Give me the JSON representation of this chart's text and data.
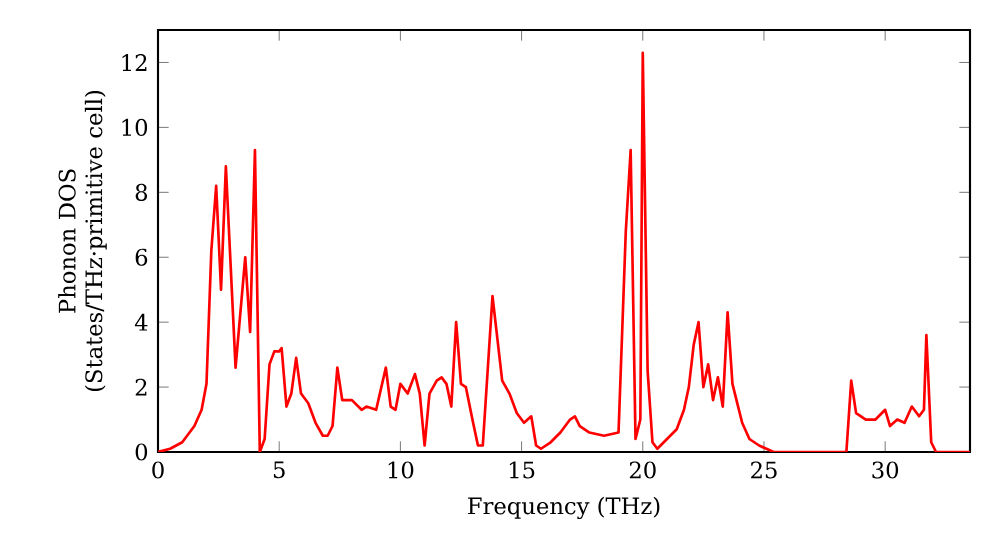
{
  "chart_data": {
    "type": "line",
    "xlabel": "Frequency (THz)",
    "ylabel": "Phonon DOS (States/THz·primitive cell)",
    "xlim": [
      0,
      33.5
    ],
    "ylim": [
      0,
      13
    ],
    "xticks": [
      0,
      5,
      10,
      15,
      20,
      25,
      30
    ],
    "yticks": [
      0,
      2,
      4,
      6,
      8,
      10,
      12
    ],
    "marker": "none",
    "line_style": "solid",
    "series": [
      {
        "color": "#ff0000",
        "x": [
          0,
          0.5,
          1,
          1.5,
          1.8,
          2.0,
          2.2,
          2.4,
          2.6,
          2.8,
          3.2,
          3.6,
          3.8,
          4.0,
          4.2,
          4.4,
          4.6,
          4.8,
          5.0,
          5.1,
          5.3,
          5.5,
          5.7,
          5.9,
          6.2,
          6.5,
          6.8,
          7.0,
          7.2,
          7.4,
          7.6,
          8.0,
          8.4,
          8.6,
          9.0,
          9.4,
          9.6,
          9.8,
          10.0,
          10.3,
          10.6,
          10.8,
          11.0,
          11.2,
          11.5,
          11.7,
          11.9,
          12.1,
          12.3,
          12.5,
          12.7,
          13.0,
          13.2,
          13.4,
          13.8,
          14.2,
          14.5,
          14.8,
          15.1,
          15.4,
          15.6,
          15.8,
          16.2,
          16.6,
          17.0,
          17.2,
          17.4,
          17.8,
          18.4,
          19.0,
          19.3,
          19.5,
          19.7,
          19.9,
          20.0,
          20.2,
          20.4,
          20.6,
          21.0,
          21.4,
          21.7,
          21.9,
          22.1,
          22.3,
          22.5,
          22.7,
          22.9,
          23.1,
          23.3,
          23.5,
          23.7,
          23.9,
          24.1,
          24.4,
          24.8,
          25.1,
          25.4,
          28.4,
          28.6,
          28.8,
          29.2,
          29.6,
          30.0,
          30.2,
          30.5,
          30.8,
          31.1,
          31.4,
          31.6,
          31.7,
          31.9,
          32.1,
          33.5
        ],
        "values": [
          0,
          0.1,
          0.3,
          0.8,
          1.3,
          2.1,
          6.2,
          8.2,
          5.0,
          8.8,
          2.6,
          6.0,
          3.7,
          9.3,
          0.0,
          0.4,
          2.7,
          3.1,
          3.1,
          3.2,
          1.4,
          1.8,
          2.9,
          1.8,
          1.5,
          0.9,
          0.5,
          0.5,
          0.8,
          2.6,
          1.6,
          1.6,
          1.3,
          1.4,
          1.3,
          2.6,
          1.4,
          1.3,
          2.1,
          1.8,
          2.4,
          1.8,
          0.2,
          1.8,
          2.2,
          2.3,
          2.1,
          1.4,
          4.0,
          2.1,
          2.0,
          0.9,
          0.2,
          0.2,
          4.8,
          2.2,
          1.8,
          1.2,
          0.9,
          1.1,
          0.2,
          0.1,
          0.3,
          0.6,
          1.0,
          1.1,
          0.8,
          0.6,
          0.5,
          0.6,
          6.8,
          9.3,
          0.4,
          1.0,
          12.3,
          2.5,
          0.3,
          0.1,
          0.4,
          0.7,
          1.3,
          2.0,
          3.3,
          4.0,
          2.0,
          2.7,
          1.6,
          2.3,
          1.4,
          4.3,
          2.1,
          1.5,
          0.9,
          0.4,
          0.2,
          0.1,
          0,
          0,
          2.2,
          1.2,
          1.0,
          1.0,
          1.3,
          0.8,
          1.0,
          0.9,
          1.4,
          1.1,
          1.3,
          3.6,
          0.3,
          0,
          0
        ]
      }
    ]
  }
}
